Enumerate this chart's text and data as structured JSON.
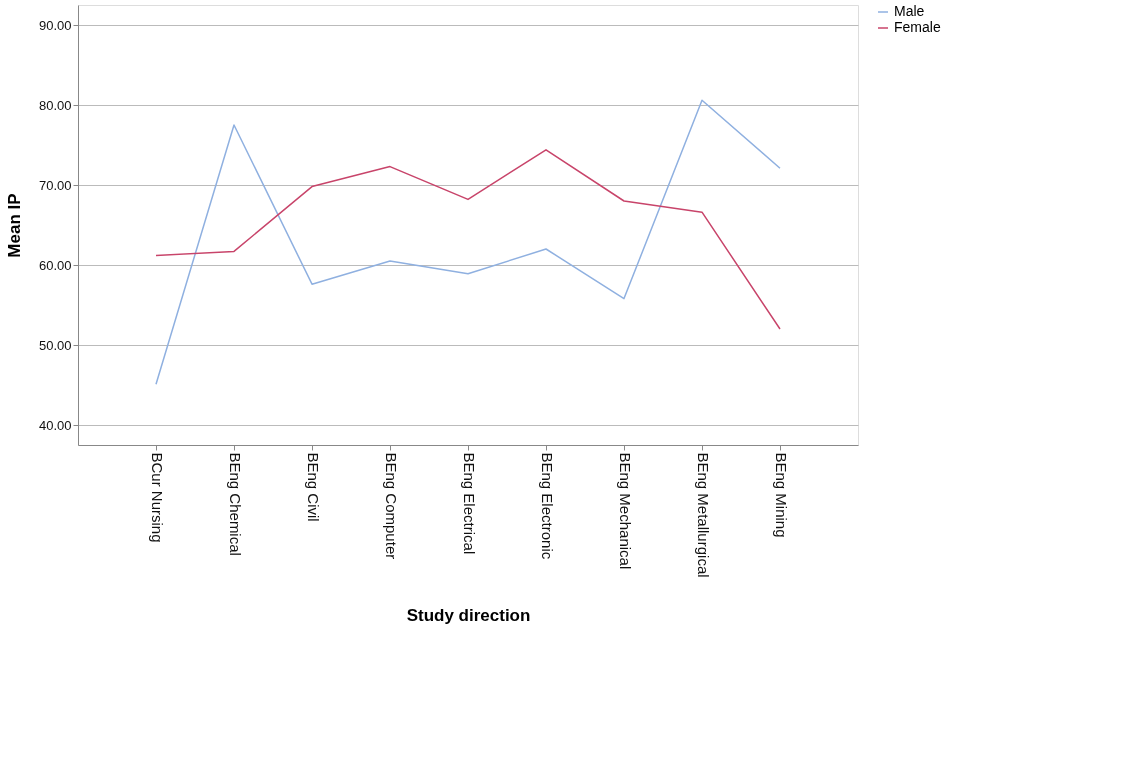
{
  "chart_data": {
    "type": "line",
    "xlabel": "Study direction",
    "ylabel": "Mean IP",
    "categories": [
      "BCur Nursing",
      "BEng Chemical",
      "BEng Civil",
      "BEng Computer",
      "BEng Electrical",
      "BEng Electronic",
      "BEng Mechanical",
      "BEng Metallurgical",
      "BEng Mining"
    ],
    "series": [
      {
        "name": "Male",
        "color": "#8fb0e0",
        "values": [
          45.1,
          77.5,
          57.6,
          60.5,
          58.9,
          62.0,
          55.8,
          80.6,
          72.1
        ]
      },
      {
        "name": "Female",
        "color": "#c8446a",
        "values": [
          61.2,
          61.7,
          69.8,
          72.3,
          68.2,
          74.4,
          68.0,
          66.6,
          52.0
        ]
      }
    ],
    "ylim": [
      37.5,
      92.5
    ],
    "yticks": [
      {
        "value": 40,
        "label": "40.00"
      },
      {
        "value": 50,
        "label": "50.00"
      },
      {
        "value": 60,
        "label": "60.00"
      },
      {
        "value": 70,
        "label": "70.00"
      },
      {
        "value": 80,
        "label": "80.00"
      },
      {
        "value": 90,
        "label": "90.00"
      }
    ],
    "grid": "y",
    "legend": "right",
    "line_style": "solid",
    "marker": "none"
  }
}
